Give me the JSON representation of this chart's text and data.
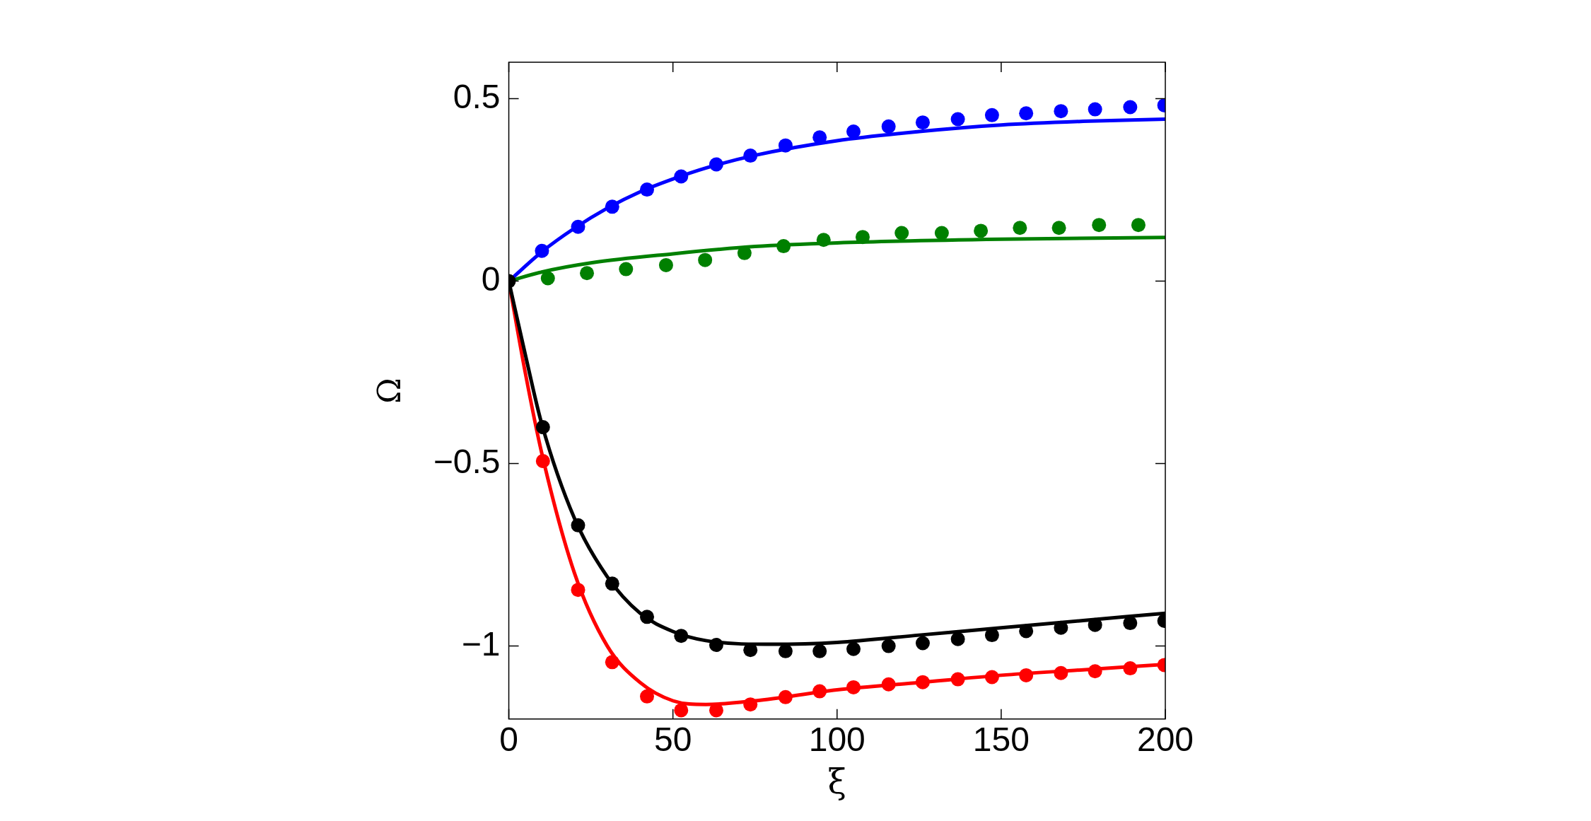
{
  "chart_data": {
    "type": "line",
    "xlabel": "ξ",
    "ylabel": "Ω",
    "xlim": [
      0,
      200
    ],
    "xticks": [
      0,
      50,
      100,
      150,
      200
    ],
    "ylim": [
      -1.2,
      0.6
    ],
    "yticks": [
      {
        "value": -1,
        "label": "−1"
      },
      {
        "value": -0.5,
        "label": "−0.5"
      },
      0,
      0.5
    ],
    "grid": false,
    "legend": false,
    "series": [
      {
        "color": "#0000ff",
        "marker": "none",
        "x": [
          0,
          10,
          20,
          30,
          40,
          50,
          60,
          75,
          100,
          125,
          150,
          175,
          200
        ],
        "values": [
          0,
          0.08,
          0.145,
          0.2,
          0.245,
          0.28,
          0.31,
          0.345,
          0.385,
          0.41,
          0.428,
          0.438,
          0.444
        ]
      },
      {
        "color": "#008000",
        "marker": "none",
        "x": [
          0,
          10,
          25,
          50,
          75,
          100,
          150,
          200
        ],
        "values": [
          0,
          0.025,
          0.05,
          0.075,
          0.095,
          0.105,
          0.115,
          0.12
        ]
      },
      {
        "color": "#000000",
        "marker": "none",
        "x": [
          0,
          5,
          10,
          20,
          30,
          40,
          50,
          60,
          80,
          100,
          125,
          150,
          175,
          200
        ],
        "values": [
          0,
          -0.2,
          -0.39,
          -0.65,
          -0.81,
          -0.91,
          -0.96,
          -0.985,
          -0.995,
          -0.99,
          -0.97,
          -0.95,
          -0.93,
          -0.91
        ]
      },
      {
        "color": "#ff0000",
        "marker": "none",
        "x": [
          0,
          5,
          10,
          20,
          30,
          40,
          50,
          60,
          75,
          100,
          125,
          150,
          175,
          200
        ],
        "values": [
          0,
          -0.25,
          -0.47,
          -0.8,
          -1.0,
          -1.1,
          -1.15,
          -1.16,
          -1.15,
          -1.12,
          -1.1,
          -1.08,
          -1.065,
          -1.05
        ]
      },
      {
        "type": "scatter",
        "color": "#0000ff",
        "marker": "circle",
        "x": [
          10.1,
          21.1,
          31.5,
          42.1,
          52.5,
          63.2,
          73.6,
          84.3,
          94.7,
          105,
          115.7,
          126.1,
          136.8,
          147.2,
          157.6,
          168.2,
          178.6,
          189.3,
          199.7
        ],
        "values": [
          0.083,
          0.149,
          0.204,
          0.251,
          0.287,
          0.32,
          0.344,
          0.372,
          0.394,
          0.41,
          0.424,
          0.435,
          0.444,
          0.455,
          0.46,
          0.466,
          0.471,
          0.477,
          0.482
        ]
      },
      {
        "type": "scatter",
        "color": "#008000",
        "marker": "circle",
        "x": [
          11.9,
          23.8,
          35.7,
          47.9,
          59.8,
          71.8,
          83.7,
          95.9,
          107.8,
          119.7,
          131.9,
          143.8,
          155.7,
          167.6,
          179.8,
          191.8
        ],
        "values": [
          0.008,
          0.022,
          0.033,
          0.044,
          0.058,
          0.077,
          0.096,
          0.113,
          0.121,
          0.132,
          0.132,
          0.138,
          0.146,
          0.146,
          0.154,
          0.154
        ]
      },
      {
        "type": "scatter",
        "color": "#000000",
        "marker": "circle",
        "x": [
          0,
          10.4,
          21.1,
          31.5,
          42.1,
          52.5,
          63.2,
          73.6,
          84.3,
          94.7,
          105,
          115.7,
          126.1,
          136.8,
          147.2,
          157.6,
          168.2,
          178.6,
          189.3,
          199.7
        ],
        "values": [
          0,
          -0.4,
          -0.669,
          -0.829,
          -0.92,
          -0.972,
          -0.997,
          -1.011,
          -1.014,
          -1.014,
          -1.008,
          -1.0,
          -0.992,
          -0.981,
          -0.97,
          -0.959,
          -0.95,
          -0.942,
          -0.937,
          -0.931
        ]
      },
      {
        "type": "scatter",
        "color": "#ff0000",
        "marker": "circle",
        "x": [
          10.4,
          21.1,
          31.5,
          42.1,
          52.5,
          63.2,
          73.6,
          84.3,
          94.7,
          105,
          115.7,
          126.1,
          136.8,
          147.2,
          157.6,
          168.2,
          178.6,
          189.3,
          199.7
        ],
        "values": [
          -0.493,
          -0.846,
          -1.044,
          -1.138,
          -1.176,
          -1.176,
          -1.16,
          -1.14,
          -1.124,
          -1.113,
          -1.105,
          -1.099,
          -1.091,
          -1.085,
          -1.08,
          -1.074,
          -1.069,
          -1.061,
          -1.052
        ]
      }
    ]
  }
}
